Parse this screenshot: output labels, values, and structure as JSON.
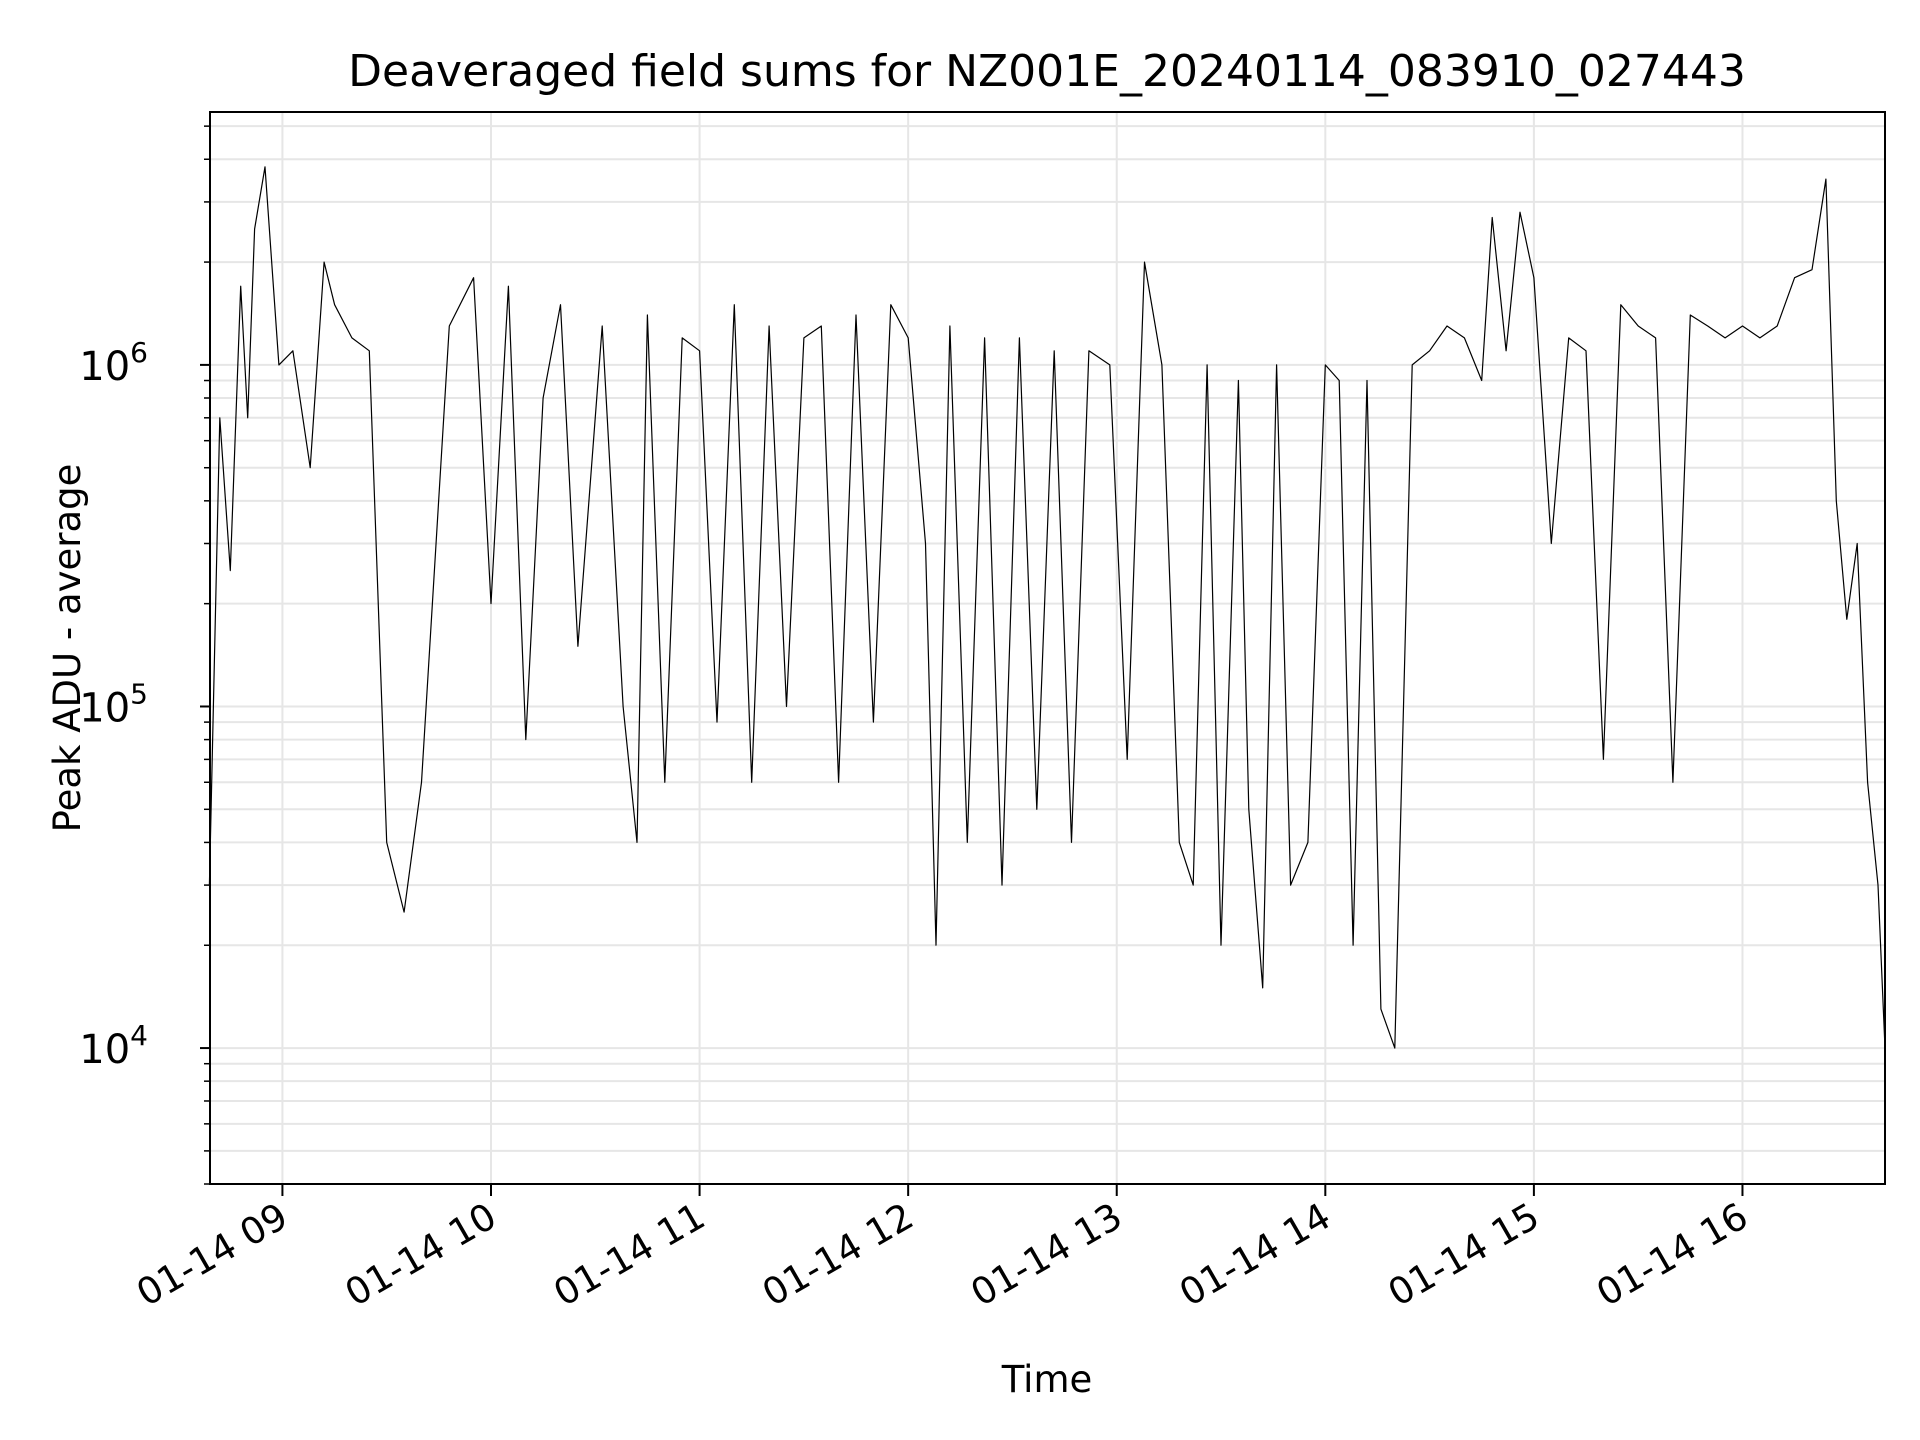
{
  "chart_data": {
    "type": "line",
    "title": "Deaveraged field sums for NZ001E_20240114_083910_027443",
    "xlabel": "Time",
    "ylabel": "Peak ADU - average",
    "y_scale": "log",
    "ylim": [
      4000,
      5500000
    ],
    "xlim": [
      "2024-01-14 08:39:10",
      "2024-01-14 16:41:00"
    ],
    "grid": true,
    "line_color": "#000000",
    "x_ticks": [
      {
        "t": "2024-01-14 09:00",
        "label": "01-14 09"
      },
      {
        "t": "2024-01-14 10:00",
        "label": "01-14 10"
      },
      {
        "t": "2024-01-14 11:00",
        "label": "01-14 11"
      },
      {
        "t": "2024-01-14 12:00",
        "label": "01-14 12"
      },
      {
        "t": "2024-01-14 13:00",
        "label": "01-14 13"
      },
      {
        "t": "2024-01-14 14:00",
        "label": "01-14 14"
      },
      {
        "t": "2024-01-14 15:00",
        "label": "01-14 15"
      },
      {
        "t": "2024-01-14 16:00",
        "label": "01-14 16"
      }
    ],
    "y_ticks": [
      {
        "value": 10000,
        "base": "10",
        "exp": "4"
      },
      {
        "value": 100000,
        "base": "10",
        "exp": "5"
      },
      {
        "value": 1000000,
        "base": "10",
        "exp": "6"
      }
    ],
    "series": [
      {
        "x": [
          "2024-01-14 08:39",
          "2024-01-14 08:42",
          "2024-01-14 08:45",
          "2024-01-14 08:48",
          "2024-01-14 08:50",
          "2024-01-14 08:52",
          "2024-01-14 08:55",
          "2024-01-14 08:59",
          "2024-01-14 09:03",
          "2024-01-14 09:08",
          "2024-01-14 09:12",
          "2024-01-14 09:15",
          "2024-01-14 09:20",
          "2024-01-14 09:25",
          "2024-01-14 09:30",
          "2024-01-14 09:35",
          "2024-01-14 09:40",
          "2024-01-14 09:48",
          "2024-01-14 09:55",
          "2024-01-14 10:00",
          "2024-01-14 10:05",
          "2024-01-14 10:10",
          "2024-01-14 10:15",
          "2024-01-14 10:20",
          "2024-01-14 10:25",
          "2024-01-14 10:32",
          "2024-01-14 10:38",
          "2024-01-14 10:42",
          "2024-01-14 10:45",
          "2024-01-14 10:50",
          "2024-01-14 10:55",
          "2024-01-14 11:00",
          "2024-01-14 11:05",
          "2024-01-14 11:10",
          "2024-01-14 11:15",
          "2024-01-14 11:20",
          "2024-01-14 11:25",
          "2024-01-14 11:30",
          "2024-01-14 11:35",
          "2024-01-14 11:40",
          "2024-01-14 11:45",
          "2024-01-14 11:50",
          "2024-01-14 11:55",
          "2024-01-14 12:00",
          "2024-01-14 12:05",
          "2024-01-14 12:08",
          "2024-01-14 12:12",
          "2024-01-14 12:17",
          "2024-01-14 12:22",
          "2024-01-14 12:27",
          "2024-01-14 12:32",
          "2024-01-14 12:37",
          "2024-01-14 12:42",
          "2024-01-14 12:47",
          "2024-01-14 12:52",
          "2024-01-14 12:58",
          "2024-01-14 13:03",
          "2024-01-14 13:08",
          "2024-01-14 13:13",
          "2024-01-14 13:18",
          "2024-01-14 13:22",
          "2024-01-14 13:26",
          "2024-01-14 13:30",
          "2024-01-14 13:35",
          "2024-01-14 13:38",
          "2024-01-14 13:42",
          "2024-01-14 13:46",
          "2024-01-14 13:50",
          "2024-01-14 13:55",
          "2024-01-14 14:00",
          "2024-01-14 14:04",
          "2024-01-14 14:08",
          "2024-01-14 14:12",
          "2024-01-14 14:16",
          "2024-01-14 14:20",
          "2024-01-14 14:25",
          "2024-01-14 14:30",
          "2024-01-14 14:35",
          "2024-01-14 14:40",
          "2024-01-14 14:45",
          "2024-01-14 14:48",
          "2024-01-14 14:52",
          "2024-01-14 14:56",
          "2024-01-14 15:00",
          "2024-01-14 15:05",
          "2024-01-14 15:10",
          "2024-01-14 15:15",
          "2024-01-14 15:20",
          "2024-01-14 15:25",
          "2024-01-14 15:30",
          "2024-01-14 15:35",
          "2024-01-14 15:40",
          "2024-01-14 15:45",
          "2024-01-14 15:50",
          "2024-01-14 15:55",
          "2024-01-14 16:00",
          "2024-01-14 16:05",
          "2024-01-14 16:10",
          "2024-01-14 16:15",
          "2024-01-14 16:20",
          "2024-01-14 16:24",
          "2024-01-14 16:27",
          "2024-01-14 16:30",
          "2024-01-14 16:33",
          "2024-01-14 16:36",
          "2024-01-14 16:39",
          "2024-01-14 16:41"
        ],
        "y": [
          30000,
          700000,
          250000,
          1700000,
          700000,
          2500000,
          3800000,
          1000000,
          1100000,
          500000,
          2000000,
          1500000,
          1200000,
          1100000,
          40000,
          25000,
          60000,
          1300000,
          1800000,
          200000,
          1700000,
          80000,
          800000,
          1500000,
          150000,
          1300000,
          100000,
          40000,
          1400000,
          60000,
          1200000,
          1100000,
          90000,
          1500000,
          60000,
          1300000,
          100000,
          1200000,
          1300000,
          60000,
          1400000,
          90000,
          1500000,
          1200000,
          300000,
          20000,
          1300000,
          40000,
          1200000,
          30000,
          1200000,
          50000,
          1100000,
          40000,
          1100000,
          1000000,
          70000,
          2000000,
          1000000,
          40000,
          30000,
          1000000,
          20000,
          900000,
          50000,
          15000,
          1000000,
          30000,
          40000,
          1000000,
          900000,
          20000,
          900000,
          13000,
          10000,
          1000000,
          1100000,
          1300000,
          1200000,
          900000,
          2700000,
          1100000,
          2800000,
          1800000,
          300000,
          1200000,
          1100000,
          70000,
          1500000,
          1300000,
          1200000,
          60000,
          1400000,
          1300000,
          1200000,
          1300000,
          1200000,
          1300000,
          1800000,
          1900000,
          3500000,
          400000,
          180000,
          300000,
          60000,
          30000,
          10000
        ]
      }
    ]
  }
}
